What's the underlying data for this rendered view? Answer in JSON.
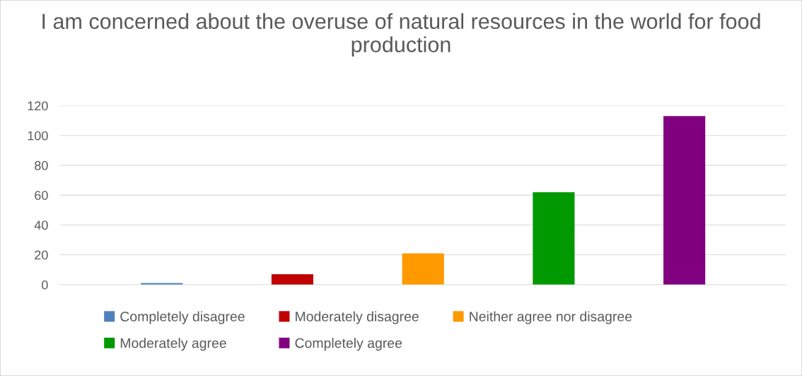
{
  "chart_data": {
    "type": "bar",
    "title": "I am concerned about the overuse of natural resources in the world for food production",
    "categories": [
      null
    ],
    "series": [
      {
        "name": "Completely disagree",
        "color": "#4f81bd",
        "values": [
          1
        ]
      },
      {
        "name": "Moderately disagree",
        "color": "#c00000",
        "values": [
          7
        ]
      },
      {
        "name": "Neither agree nor disagree",
        "color": "#ff9900",
        "values": [
          21
        ]
      },
      {
        "name": "Moderately agree",
        "color": "#009900",
        "values": [
          62
        ]
      },
      {
        "name": "Completely agree",
        "color": "#800080",
        "values": [
          113
        ]
      }
    ],
    "ylim": [
      0,
      120
    ],
    "yticks": [
      0,
      20,
      40,
      60,
      80,
      100,
      120
    ],
    "grid": "y",
    "legend": "bottom"
  }
}
